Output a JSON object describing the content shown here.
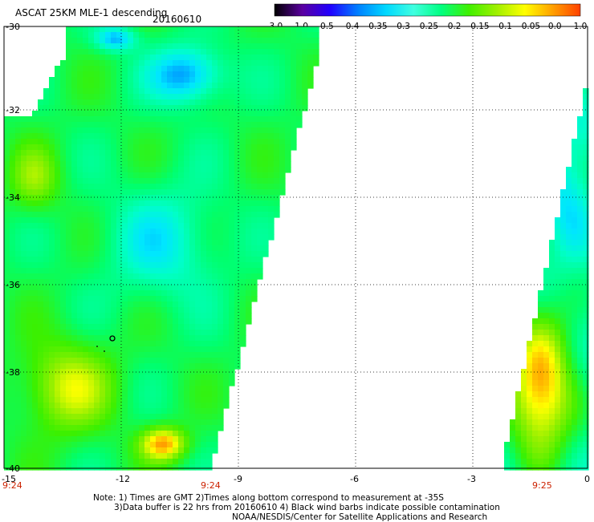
{
  "header": {
    "title": "ASCAT 25KM MLE-1 descending",
    "date": "20160610"
  },
  "colorbar": {
    "tick_labels": [
      "-3.0",
      "-1.0",
      "-0.5",
      "-0.4",
      "-0.35",
      "-0.3",
      "-0.25",
      "-0.2",
      "-0.15",
      "-0.1",
      "-0.05",
      "0.0",
      "1.0"
    ],
    "colors": [
      "#000000",
      "#5a00a0",
      "#2000ff",
      "#0080ff",
      "#00d8ff",
      "#40ffe0",
      "#00ff80",
      "#40f000",
      "#a0f000",
      "#ffff00",
      "#ffa000",
      "#ff4000"
    ]
  },
  "map": {
    "y_ticks": [
      "-30",
      "-32",
      "-34",
      "-36",
      "-38",
      "-40"
    ],
    "x_ticks": [
      "-15",
      "-12",
      "-9",
      "-6",
      "-3",
      "0"
    ],
    "time_labels": [
      "9:24",
      "9:24",
      "9:25"
    ],
    "gridline_color": "#000000"
  },
  "footer": {
    "line1": "Note: 1) Times are GMT 2)Times along bottom correspond to measurement at -35S",
    "line2": "3)Data buffer is 22 hrs from 20160610 4) Black wind barbs indicate possible contamination",
    "line3": "NOAA/NESDIS/Center for Satellite Applications and Research"
  }
}
